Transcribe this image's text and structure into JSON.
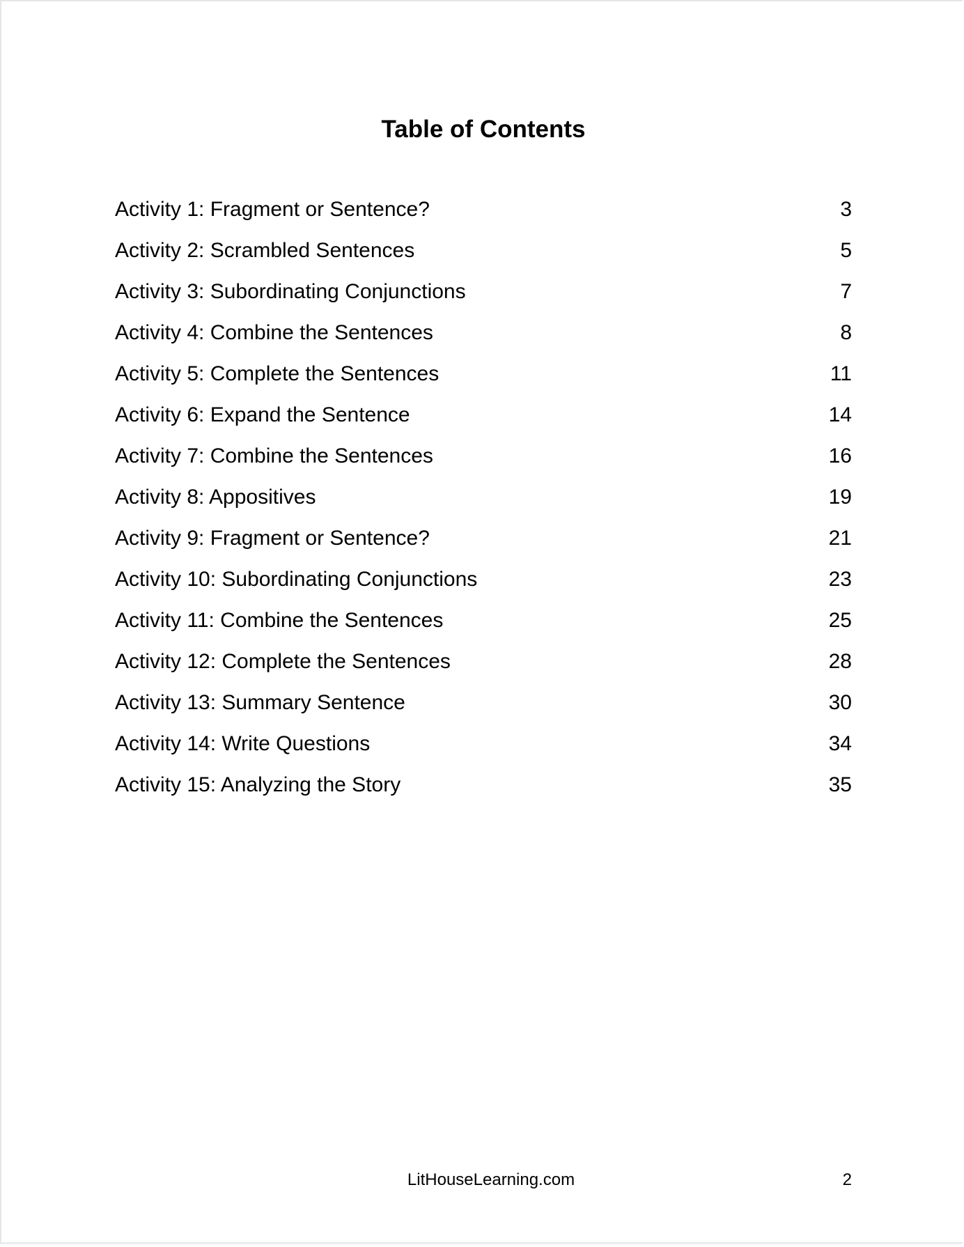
{
  "title": "Table of Contents",
  "entries": [
    {
      "label": "Activity 1: Fragment or Sentence?",
      "page": "3"
    },
    {
      "label": "Activity 2: Scrambled Sentences",
      "page": "5"
    },
    {
      "label": "Activity 3: Subordinating Conjunctions",
      "page": "7"
    },
    {
      "label": "Activity 4: Combine the Sentences",
      "page": "8"
    },
    {
      "label": "Activity 5: Complete the Sentences",
      "page": "11"
    },
    {
      "label": "Activity 6: Expand the Sentence",
      "page": "14"
    },
    {
      "label": "Activity 7: Combine the Sentences",
      "page": "16"
    },
    {
      "label": "Activity 8: Appositives",
      "page": "19"
    },
    {
      "label": "Activity 9: Fragment or Sentence?",
      "page": "21"
    },
    {
      "label": "Activity 10: Subordinating Conjunctions",
      "page": "23"
    },
    {
      "label": "Activity 11: Combine the Sentences",
      "page": "25"
    },
    {
      "label": "Activity 12: Complete the Sentences",
      "page": "28"
    },
    {
      "label": "Activity 13: Summary Sentence",
      "page": "30"
    },
    {
      "label": "Activity 14: Write Questions",
      "page": "34"
    },
    {
      "label": "Activity 15: Analyzing the Story",
      "page": "35"
    }
  ],
  "footer": {
    "site": "LitHouseLearning.com",
    "page_number": "2"
  }
}
